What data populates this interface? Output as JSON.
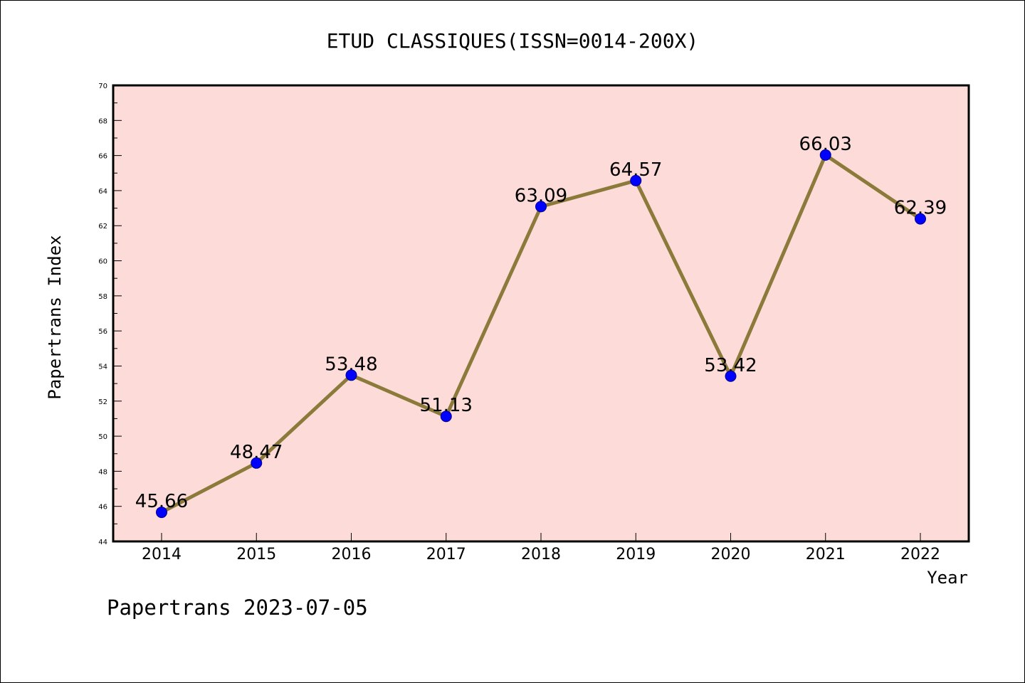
{
  "chart_data": {
    "type": "line",
    "title": "ETUD CLASSIQUES(ISSN=0014-200X)",
    "xlabel": "Year",
    "ylabel": "Papertrans Index",
    "categories": [
      "2014",
      "2015",
      "2016",
      "2017",
      "2018",
      "2019",
      "2020",
      "2021",
      "2022"
    ],
    "values": [
      45.66,
      48.47,
      53.48,
      51.13,
      63.09,
      64.57,
      53.42,
      66.03,
      62.39
    ],
    "data_labels": [
      "45.66",
      "48.47",
      "53.48",
      "51.13",
      "63.09",
      "64.57",
      "53.42",
      "66.03",
      "62.39"
    ],
    "ylim": [
      44,
      70
    ],
    "yticks": [
      "44",
      "46",
      "48",
      "50",
      "52",
      "54",
      "56",
      "58",
      "60",
      "62",
      "64",
      "66",
      "68",
      "70"
    ],
    "grid": false,
    "colors": {
      "plot_background": "#fddbd8",
      "line": "#8b7a3a",
      "marker": "#0000ff",
      "marker_edge": "#00008b"
    }
  },
  "footer": "Papertrans 2023-07-05"
}
